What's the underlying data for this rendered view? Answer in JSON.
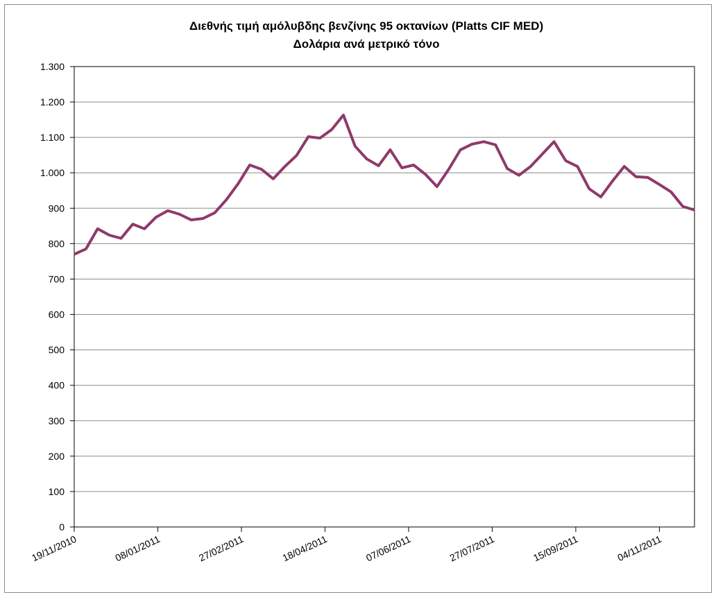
{
  "chart_data": {
    "type": "line",
    "title": "Διεθνής τιμή αμόλυβδης βενζίνης 95 οκτανίων (Platts CIF MED)",
    "subtitle": "Δολάρια ανά μετρικό τόνο",
    "x": [
      "19/11/2010",
      "26/11/2010",
      "03/12/2010",
      "10/12/2010",
      "17/12/2010",
      "24/12/2010",
      "31/12/2010",
      "07/01/2011",
      "14/01/2011",
      "21/01/2011",
      "28/01/2011",
      "04/02/2011",
      "11/02/2011",
      "18/02/2011",
      "25/02/2011",
      "04/03/2011",
      "11/03/2011",
      "18/03/2011",
      "25/03/2011",
      "01/04/2011",
      "08/04/2011",
      "15/04/2011",
      "22/04/2011",
      "29/04/2011",
      "06/05/2011",
      "13/05/2011",
      "20/05/2011",
      "27/05/2011",
      "03/06/2011",
      "10/06/2011",
      "17/06/2011",
      "24/06/2011",
      "01/07/2011",
      "08/07/2011",
      "15/07/2011",
      "22/07/2011",
      "29/07/2011",
      "05/08/2011",
      "12/08/2011",
      "19/08/2011",
      "26/08/2011",
      "02/09/2011",
      "09/09/2011",
      "16/09/2011",
      "23/09/2011",
      "30/09/2011",
      "07/10/2011",
      "14/10/2011",
      "21/10/2011",
      "28/10/2011",
      "04/11/2011",
      "11/11/2011",
      "18/11/2011",
      "25/11/2011"
    ],
    "series": [
      {
        "color": "#8e3a6b",
        "values": [
          770,
          785,
          842,
          824,
          815,
          855,
          842,
          875,
          893,
          883,
          867,
          871,
          887,
          924,
          969,
          1022,
          1010,
          983,
          1018,
          1049,
          1102,
          1098,
          1122,
          1163,
          1075,
          1039,
          1020,
          1065,
          1014,
          1022,
          996,
          961,
          1010,
          1065,
          1081,
          1088,
          1079,
          1012,
          993,
          1018,
          1053,
          1088,
          1034,
          1018,
          955,
          932,
          977,
          1018,
          989,
          987,
          967,
          946,
          905,
          895
        ]
      }
    ],
    "xlim": [
      "19/11/2010",
      "25/11/2011"
    ],
    "xticks": [
      "19/11/2010",
      "08/01/2011",
      "27/02/2011",
      "18/04/2011",
      "07/06/2011",
      "27/07/2011",
      "15/09/2011",
      "04/11/2011"
    ],
    "ylim": [
      0,
      1300
    ],
    "yticks": [
      0,
      100,
      200,
      300,
      400,
      500,
      600,
      700,
      800,
      900,
      {
        "value": 1000,
        "label": "1.000"
      },
      {
        "value": 1100,
        "label": "1.100"
      },
      {
        "value": 1200,
        "label": "1.200"
      },
      {
        "value": 1300,
        "label": "1.300"
      }
    ],
    "grid": true
  }
}
